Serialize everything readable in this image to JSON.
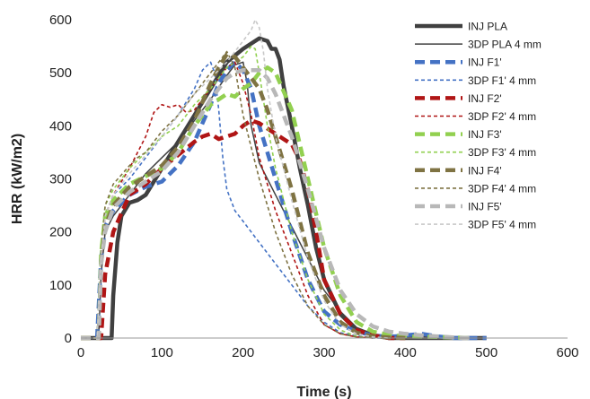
{
  "chart_data": {
    "type": "line",
    "title": "",
    "xlabel": "Time (s)",
    "ylabel": "HRR (kW/m2)",
    "xlim": [
      0,
      600
    ],
    "ylim": [
      0,
      600
    ],
    "xticks": [
      "0",
      "100",
      "200",
      "300",
      "400",
      "500",
      "600"
    ],
    "yticks": [
      "0",
      "100",
      "200",
      "300",
      "400",
      "500",
      "600"
    ],
    "grid": false,
    "legend_position": "right",
    "series": [
      {
        "name": "INJ PLA",
        "color": "#404040",
        "style": "solid-thick",
        "x": [
          0,
          38,
          40,
          45,
          50,
          60,
          70,
          80,
          100,
          120,
          140,
          160,
          180,
          200,
          210,
          220,
          230,
          235,
          240,
          245,
          250,
          260,
          270,
          280,
          290,
          300,
          320,
          340,
          360,
          380,
          400,
          450,
          500
        ],
        "y": [
          0,
          0,
          80,
          180,
          230,
          255,
          260,
          270,
          320,
          370,
          420,
          470,
          520,
          545,
          555,
          565,
          560,
          545,
          545,
          525,
          475,
          400,
          320,
          250,
          170,
          110,
          45,
          15,
          5,
          0,
          0,
          0,
          0
        ]
      },
      {
        "name": "3DP PLA 4 mm",
        "color": "#404040",
        "style": "solid-thin",
        "x": [
          0,
          22,
          25,
          30,
          40,
          60,
          80,
          100,
          120,
          140,
          160,
          180,
          190,
          200,
          205,
          210,
          220,
          240,
          260,
          280,
          300,
          320,
          340,
          360,
          380,
          400,
          450
        ],
        "y": [
          0,
          0,
          120,
          200,
          230,
          270,
          310,
          340,
          370,
          410,
          450,
          495,
          515,
          520,
          480,
          400,
          330,
          270,
          210,
          150,
          90,
          50,
          20,
          8,
          0,
          0,
          0
        ]
      },
      {
        "name": "INJ F1'",
        "color": "#4472c4",
        "style": "dash-thick",
        "x": [
          0,
          20,
          25,
          30,
          40,
          60,
          80,
          100,
          120,
          140,
          160,
          170,
          180,
          190,
          200,
          210,
          220,
          240,
          260,
          280,
          300,
          320,
          340,
          360,
          380,
          400,
          420,
          440,
          460,
          500
        ],
        "y": [
          0,
          0,
          150,
          210,
          240,
          270,
          285,
          295,
          325,
          370,
          440,
          480,
          505,
          520,
          505,
          470,
          400,
          300,
          200,
          110,
          50,
          25,
          12,
          5,
          2,
          5,
          8,
          3,
          0,
          0
        ]
      },
      {
        "name": "3DP F1' 4 mm",
        "color": "#4472c4",
        "style": "dash-thin",
        "x": [
          0,
          20,
          25,
          30,
          40,
          60,
          80,
          100,
          120,
          140,
          150,
          160,
          165,
          170,
          175,
          180,
          190,
          200,
          220,
          240,
          260,
          280,
          300,
          320,
          340,
          360,
          380
        ],
        "y": [
          0,
          0,
          180,
          230,
          270,
          300,
          340,
          380,
          420,
          470,
          505,
          520,
          500,
          430,
          340,
          280,
          240,
          220,
          180,
          140,
          100,
          60,
          30,
          10,
          4,
          0,
          0
        ]
      },
      {
        "name": "INJ F2'",
        "color": "#b01515",
        "style": "dash-thick",
        "x": [
          0,
          25,
          30,
          40,
          60,
          80,
          100,
          120,
          140,
          150,
          160,
          170,
          180,
          190,
          200,
          210,
          220,
          230,
          240,
          250,
          260,
          270,
          280,
          290,
          300,
          320,
          340,
          360,
          380,
          400
        ],
        "y": [
          0,
          0,
          120,
          200,
          270,
          290,
          320,
          345,
          370,
          380,
          385,
          375,
          380,
          385,
          400,
          410,
          405,
          395,
          385,
          375,
          365,
          335,
          280,
          200,
          110,
          45,
          15,
          5,
          0,
          0
        ]
      },
      {
        "name": "3DP F2' 4 mm",
        "color": "#b01515",
        "style": "dash-thin",
        "x": [
          0,
          20,
          25,
          30,
          40,
          60,
          80,
          90,
          100,
          110,
          120,
          130,
          140,
          160,
          180,
          190,
          200,
          210,
          220,
          240,
          260,
          280,
          300,
          320,
          340,
          360
        ],
        "y": [
          0,
          0,
          150,
          230,
          270,
          320,
          380,
          425,
          440,
          435,
          440,
          425,
          430,
          470,
          510,
          520,
          480,
          420,
          340,
          240,
          160,
          80,
          25,
          8,
          2,
          0
        ]
      },
      {
        "name": "INJ F3'",
        "color": "#92d050",
        "style": "dash-thick",
        "x": [
          0,
          22,
          25,
          30,
          40,
          60,
          80,
          100,
          120,
          140,
          160,
          170,
          180,
          190,
          200,
          210,
          220,
          230,
          240,
          260,
          280,
          300,
          320,
          340,
          360,
          380,
          400,
          440,
          480
        ],
        "y": [
          0,
          0,
          160,
          230,
          260,
          290,
          305,
          320,
          350,
          400,
          440,
          450,
          460,
          455,
          470,
          480,
          500,
          510,
          500,
          430,
          300,
          170,
          80,
          30,
          12,
          6,
          3,
          2,
          0
        ]
      },
      {
        "name": "3DP F3' 4 mm",
        "color": "#92d050",
        "style": "dash-thin",
        "x": [
          0,
          20,
          25,
          30,
          40,
          60,
          80,
          100,
          120,
          140,
          160,
          180,
          200,
          210,
          215,
          220,
          230,
          240,
          260,
          280,
          300,
          320,
          340,
          360
        ],
        "y": [
          0,
          0,
          180,
          250,
          280,
          320,
          350,
          380,
          400,
          440,
          470,
          510,
          530,
          550,
          545,
          500,
          400,
          320,
          200,
          110,
          45,
          15,
          3,
          0
        ]
      },
      {
        "name": "INJ F4'",
        "color": "#7f7343",
        "style": "dash-thick",
        "x": [
          0,
          22,
          25,
          30,
          40,
          60,
          80,
          100,
          120,
          140,
          160,
          170,
          180,
          190,
          200,
          210,
          220,
          230,
          240,
          260,
          280,
          300,
          320,
          340,
          360,
          380,
          400
        ],
        "y": [
          0,
          0,
          140,
          210,
          250,
          285,
          305,
          325,
          360,
          410,
          480,
          510,
          535,
          530,
          510,
          490,
          470,
          430,
          380,
          280,
          160,
          80,
          30,
          10,
          3,
          1,
          0
        ]
      },
      {
        "name": "3DP F4' 4 mm",
        "color": "#7f7343",
        "style": "dash-thin",
        "x": [
          0,
          20,
          25,
          30,
          40,
          60,
          70,
          80,
          100,
          120,
          140,
          160,
          170,
          180,
          190,
          200,
          220,
          240,
          260,
          280,
          300,
          320,
          340,
          360
        ],
        "y": [
          0,
          0,
          160,
          250,
          290,
          325,
          340,
          350,
          390,
          420,
          460,
          500,
          520,
          540,
          510,
          420,
          300,
          200,
          120,
          60,
          25,
          8,
          2,
          0
        ]
      },
      {
        "name": "INJ F5'",
        "color": "#b8b8b8",
        "style": "dash-thick",
        "x": [
          0,
          22,
          25,
          30,
          40,
          60,
          80,
          100,
          120,
          140,
          160,
          170,
          180,
          190,
          200,
          210,
          220,
          230,
          240,
          260,
          280,
          300,
          320,
          340,
          360,
          380,
          400,
          420,
          440,
          460,
          480
        ],
        "y": [
          0,
          0,
          140,
          200,
          245,
          275,
          295,
          315,
          350,
          400,
          450,
          470,
          490,
          500,
          505,
          505,
          505,
          490,
          460,
          380,
          280,
          170,
          90,
          45,
          22,
          12,
          8,
          5,
          3,
          1,
          0
        ]
      },
      {
        "name": "3DP F5' 4 mm",
        "color": "#c8c8c8",
        "style": "dash-thin",
        "x": [
          0,
          20,
          25,
          30,
          40,
          60,
          80,
          100,
          120,
          140,
          160,
          180,
          200,
          210,
          215,
          220,
          225,
          230,
          240,
          260,
          280,
          300,
          320,
          340,
          360,
          380
        ],
        "y": [
          0,
          0,
          150,
          230,
          270,
          310,
          345,
          380,
          420,
          460,
          490,
          520,
          560,
          580,
          600,
          585,
          540,
          470,
          380,
          260,
          150,
          70,
          25,
          8,
          2,
          0
        ]
      }
    ]
  }
}
